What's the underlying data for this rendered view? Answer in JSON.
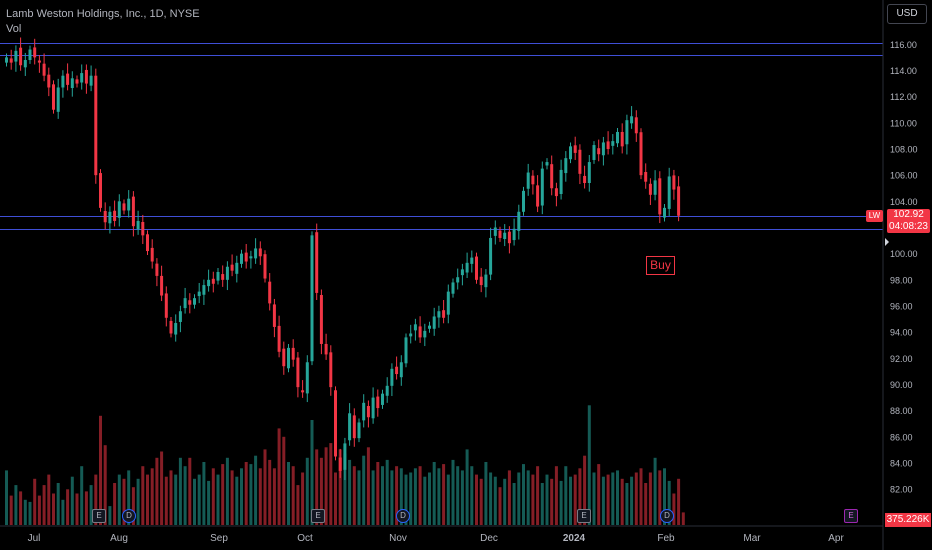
{
  "header": {
    "title": "Lamb Weston Holdings, Inc., 1D, NYSE",
    "vol_label": "Vol"
  },
  "currency": "USD",
  "last_price": {
    "symbol": "LW",
    "value": "102.92",
    "countdown": "04:08:23"
  },
  "volume_label": "375.226K",
  "annotation": "Buy",
  "colors": {
    "up": "#26a69a",
    "down": "#f23645",
    "hline": "#3f4fd6",
    "axis_text": "#b2b5be"
  },
  "chart_data": {
    "type": "candlestick",
    "title": "Lamb Weston Holdings, Inc., 1D, NYSE",
    "ylim": [
      80.5,
      117
    ],
    "y_ticks": [
      "82.00",
      "84.00",
      "86.00",
      "88.00",
      "90.00",
      "92.00",
      "94.00",
      "96.00",
      "98.00",
      "100.00",
      "102.00",
      "104.00",
      "106.00",
      "108.00",
      "110.00",
      "112.00",
      "114.00",
      "116.00"
    ],
    "x_ticks": [
      "Jul",
      "Aug",
      "Sep",
      "Oct",
      "Nov",
      "Dec",
      "2024",
      "Feb",
      "Mar",
      "Apr"
    ],
    "horizontal_lines": [
      116.1,
      115.2,
      102.9,
      101.9
    ],
    "events": [
      {
        "type": "E",
        "label": "E"
      },
      {
        "type": "D",
        "label": "D"
      },
      {
        "type": "E",
        "label": "E"
      },
      {
        "type": "D",
        "label": "D"
      },
      {
        "type": "E",
        "label": "E"
      },
      {
        "type": "D",
        "label": "D"
      },
      {
        "type": "E-future",
        "label": "E"
      }
    ],
    "closes": [
      115.0,
      114.6,
      115.5,
      114.4,
      114.8,
      115.6,
      115.0,
      114.6,
      113.6,
      112.7,
      111.0,
      112.7,
      113.6,
      112.9,
      113.4,
      113.0,
      113.8,
      113.0,
      113.6,
      106.0,
      103.5,
      102.4,
      103.2,
      102.5,
      104.0,
      103.3,
      104.2,
      102.1,
      102.5,
      101.4,
      100.2,
      99.4,
      98.3,
      96.8,
      95.1,
      93.9,
      94.7,
      95.6,
      96.6,
      96.1,
      96.6,
      97.1,
      97.6,
      98.0,
      97.7,
      98.6,
      98.0,
      99.0,
      98.7,
      99.3,
      100.0,
      99.4,
      99.8,
      100.4,
      99.8,
      98.1,
      96.2,
      94.4,
      92.5,
      91.4,
      92.8,
      91.9,
      89.8,
      89.4,
      91.7,
      101.4,
      97.0,
      93.1,
      92.3,
      89.8,
      84.5,
      83.4,
      85.5,
      87.8,
      85.9,
      87.1,
      88.6,
      87.5,
      89.0,
      88.2,
      89.3,
      89.9,
      91.2,
      90.8,
      91.7,
      93.6,
      93.9,
      94.6,
      93.6,
      94.1,
      94.5,
      95.2,
      95.6,
      95.1,
      97.1,
      97.8,
      98.2,
      98.8,
      99.3,
      99.7,
      98.0,
      97.6,
      98.4,
      101.2,
      102.0,
      101.2,
      101.6,
      100.8,
      101.9,
      103.2,
      104.8,
      106.2,
      105.3,
      103.6,
      106.5,
      107.0,
      105.0,
      104.4,
      106.4,
      107.3,
      108.2,
      107.7,
      106.1,
      105.4,
      107.0,
      108.3,
      107.6,
      108.5,
      108.0,
      108.6,
      109.3,
      108.2,
      110.2,
      110.5,
      109.2,
      106.0,
      105.5,
      104.5,
      105.6,
      103.0,
      103.5,
      105.9,
      104.9,
      102.9
    ],
    "volumes": [
      130,
      70,
      95,
      80,
      60,
      55,
      110,
      70,
      95,
      120,
      75,
      100,
      60,
      85,
      115,
      75,
      140,
      80,
      95,
      120,
      260,
      190,
      45,
      100,
      120,
      110,
      130,
      90,
      110,
      140,
      120,
      135,
      160,
      175,
      115,
      130,
      120,
      160,
      140,
      160,
      110,
      120,
      150,
      105,
      135,
      120,
      145,
      160,
      130,
      115,
      135,
      150,
      145,
      165,
      135,
      180,
      155,
      135,
      230,
      210,
      150,
      140,
      95,
      125,
      160,
      250,
      180,
      160,
      185,
      195,
      125,
      180,
      170,
      155,
      140,
      130,
      165,
      185,
      130,
      150,
      140,
      155,
      130,
      140,
      135,
      120,
      125,
      135,
      140,
      115,
      125,
      150,
      135,
      145,
      120,
      155,
      140,
      130,
      180,
      140,
      120,
      110,
      150,
      125,
      115,
      90,
      110,
      130,
      100,
      125,
      145,
      130,
      120,
      140,
      100,
      120,
      110,
      140,
      105,
      140,
      115,
      120,
      135,
      165,
      285,
      125,
      145,
      115,
      120,
      125,
      130,
      110,
      100,
      115,
      125,
      135,
      100,
      125,
      160,
      130,
      135,
      105,
      75,
      110,
      30
    ]
  }
}
